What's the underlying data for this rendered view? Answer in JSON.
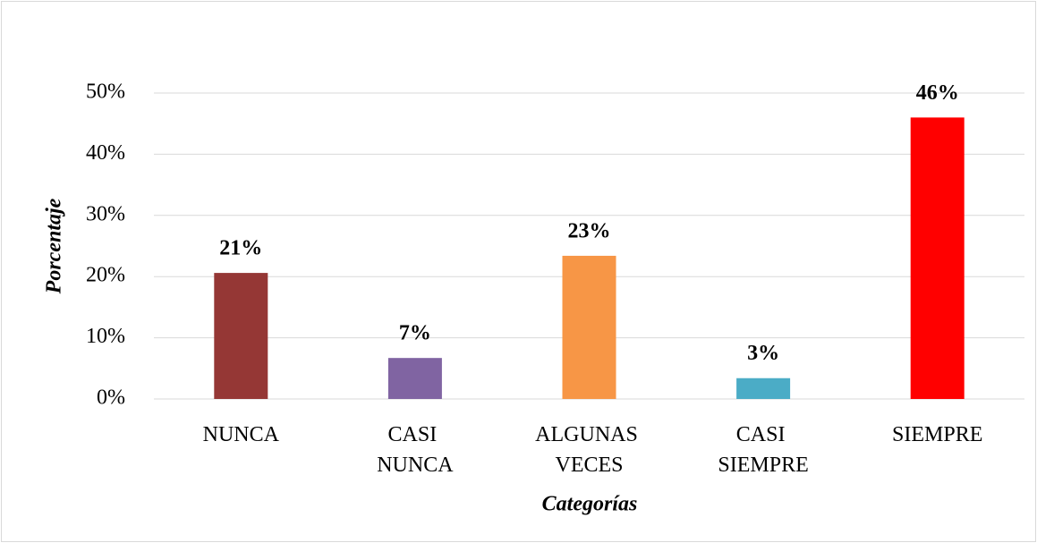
{
  "chart_data": {
    "type": "bar",
    "y_label": "Porcentaje",
    "x_label": "Categorías",
    "categories": [
      "NUNCA",
      "CASI NUNCA",
      "ALGUNAS VECES",
      "CASI SIEMPRE",
      "SIEMPRE"
    ],
    "values": [
      20.6,
      6.7,
      23.4,
      3.4,
      46.0
    ],
    "value_labels": [
      "21%",
      "7%",
      "23%",
      "3%",
      "46%"
    ],
    "colors": [
      "#953735",
      "#8064a2",
      "#f79646",
      "#4bacc6",
      "#ff0000"
    ],
    "ylim": [
      0,
      50
    ],
    "yticks": [
      {
        "value": 0,
        "label": "0%"
      },
      {
        "value": 10,
        "label": "10%"
      },
      {
        "value": 20,
        "label": "20%"
      },
      {
        "value": 30,
        "label": "30%"
      },
      {
        "value": 40,
        "label": "40%"
      },
      {
        "value": 50,
        "label": "50%"
      }
    ],
    "grid": true
  }
}
